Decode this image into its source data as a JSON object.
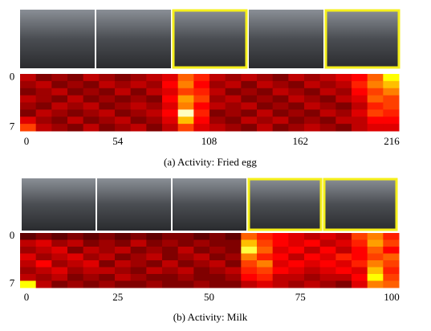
{
  "chart_data": [
    {
      "type": "heatmap",
      "title": "(a) Activity: Fried egg",
      "xlim": [
        0,
        216
      ],
      "xticks": [
        0,
        54,
        108,
        162,
        216
      ],
      "ylim": [
        0,
        7
      ],
      "yticks": [
        0,
        7
      ],
      "zlim": [
        0,
        1
      ],
      "z": [
        [
          0.3,
          0.2,
          0.25,
          0.2,
          0.3,
          0.25,
          0.2,
          0.25,
          0.3,
          0.35,
          0.55,
          0.45,
          0.3,
          0.25,
          0.3,
          0.25,
          0.2,
          0.3,
          0.25,
          0.3,
          0.35,
          0.4,
          0.55,
          0.8
        ],
        [
          0.25,
          0.3,
          0.2,
          0.25,
          0.2,
          0.3,
          0.25,
          0.3,
          0.25,
          0.4,
          0.6,
          0.4,
          0.25,
          0.3,
          0.2,
          0.3,
          0.25,
          0.2,
          0.3,
          0.25,
          0.3,
          0.45,
          0.6,
          0.7
        ],
        [
          0.2,
          0.25,
          0.3,
          0.2,
          0.25,
          0.2,
          0.3,
          0.2,
          0.3,
          0.35,
          0.5,
          0.45,
          0.3,
          0.2,
          0.25,
          0.2,
          0.3,
          0.25,
          0.2,
          0.3,
          0.25,
          0.4,
          0.5,
          0.6
        ],
        [
          0.3,
          0.25,
          0.2,
          0.3,
          0.2,
          0.25,
          0.2,
          0.25,
          0.2,
          0.4,
          0.65,
          0.5,
          0.25,
          0.3,
          0.2,
          0.25,
          0.2,
          0.3,
          0.25,
          0.2,
          0.3,
          0.35,
          0.55,
          0.5
        ],
        [
          0.25,
          0.2,
          0.3,
          0.25,
          0.3,
          0.2,
          0.25,
          0.3,
          0.25,
          0.35,
          0.6,
          0.4,
          0.3,
          0.25,
          0.3,
          0.2,
          0.25,
          0.2,
          0.3,
          0.25,
          0.2,
          0.3,
          0.45,
          0.5
        ],
        [
          0.2,
          0.3,
          0.25,
          0.2,
          0.25,
          0.3,
          0.2,
          0.25,
          0.3,
          0.4,
          0.95,
          0.45,
          0.2,
          0.25,
          0.2,
          0.3,
          0.2,
          0.25,
          0.2,
          0.3,
          0.25,
          0.35,
          0.5,
          0.45
        ],
        [
          0.35,
          0.25,
          0.2,
          0.3,
          0.2,
          0.25,
          0.3,
          0.2,
          0.25,
          0.35,
          0.7,
          0.4,
          0.25,
          0.2,
          0.3,
          0.25,
          0.3,
          0.2,
          0.25,
          0.2,
          0.3,
          0.3,
          0.4,
          0.4
        ],
        [
          0.5,
          0.3,
          0.25,
          0.2,
          0.3,
          0.2,
          0.25,
          0.3,
          0.2,
          0.3,
          0.5,
          0.35,
          0.3,
          0.25,
          0.2,
          0.3,
          0.2,
          0.25,
          0.3,
          0.25,
          0.2,
          0.3,
          0.35,
          0.35
        ]
      ]
    },
    {
      "type": "heatmap",
      "title": "(b) Activity: Milk",
      "xlim": [
        0,
        100
      ],
      "xticks": [
        0,
        25,
        50,
        75,
        100
      ],
      "ylim": [
        0,
        7
      ],
      "yticks": [
        0,
        7
      ],
      "zlim": [
        0,
        1
      ],
      "z": [
        [
          0.15,
          0.2,
          0.15,
          0.2,
          0.15,
          0.2,
          0.15,
          0.2,
          0.15,
          0.2,
          0.2,
          0.15,
          0.2,
          0.15,
          0.55,
          0.45,
          0.4,
          0.35,
          0.3,
          0.35,
          0.3,
          0.5,
          0.6,
          0.45
        ],
        [
          0.3,
          0.35,
          0.25,
          0.3,
          0.2,
          0.25,
          0.2,
          0.3,
          0.2,
          0.25,
          0.2,
          0.25,
          0.2,
          0.2,
          0.7,
          0.5,
          0.4,
          0.35,
          0.4,
          0.3,
          0.35,
          0.45,
          0.65,
          0.5
        ],
        [
          0.25,
          0.3,
          0.35,
          0.2,
          0.3,
          0.25,
          0.3,
          0.2,
          0.25,
          0.2,
          0.3,
          0.2,
          0.25,
          0.2,
          0.85,
          0.55,
          0.35,
          0.4,
          0.3,
          0.4,
          0.3,
          0.4,
          0.55,
          0.4
        ],
        [
          0.35,
          0.25,
          0.3,
          0.35,
          0.25,
          0.3,
          0.2,
          0.25,
          0.3,
          0.2,
          0.25,
          0.3,
          0.2,
          0.25,
          0.6,
          0.45,
          0.4,
          0.3,
          0.4,
          0.35,
          0.45,
          0.4,
          0.5,
          0.55
        ],
        [
          0.3,
          0.4,
          0.25,
          0.3,
          0.35,
          0.2,
          0.3,
          0.25,
          0.2,
          0.3,
          0.2,
          0.25,
          0.3,
          0.2,
          0.5,
          0.6,
          0.35,
          0.4,
          0.35,
          0.4,
          0.35,
          0.45,
          0.6,
          0.5
        ],
        [
          0.25,
          0.3,
          0.35,
          0.25,
          0.3,
          0.3,
          0.25,
          0.2,
          0.3,
          0.25,
          0.3,
          0.2,
          0.25,
          0.3,
          0.45,
          0.5,
          0.4,
          0.35,
          0.3,
          0.35,
          0.4,
          0.35,
          0.7,
          0.45
        ],
        [
          0.3,
          0.25,
          0.3,
          0.2,
          0.25,
          0.2,
          0.3,
          0.25,
          0.2,
          0.2,
          0.25,
          0.2,
          0.2,
          0.25,
          0.4,
          0.45,
          0.3,
          0.3,
          0.25,
          0.3,
          0.3,
          0.4,
          0.8,
          0.5
        ],
        [
          0.8,
          0.3,
          0.2,
          0.25,
          0.2,
          0.25,
          0.2,
          0.2,
          0.25,
          0.2,
          0.2,
          0.25,
          0.2,
          0.2,
          0.3,
          0.35,
          0.3,
          0.25,
          0.3,
          0.25,
          0.2,
          0.35,
          0.6,
          0.55
        ]
      ]
    }
  ]
}
